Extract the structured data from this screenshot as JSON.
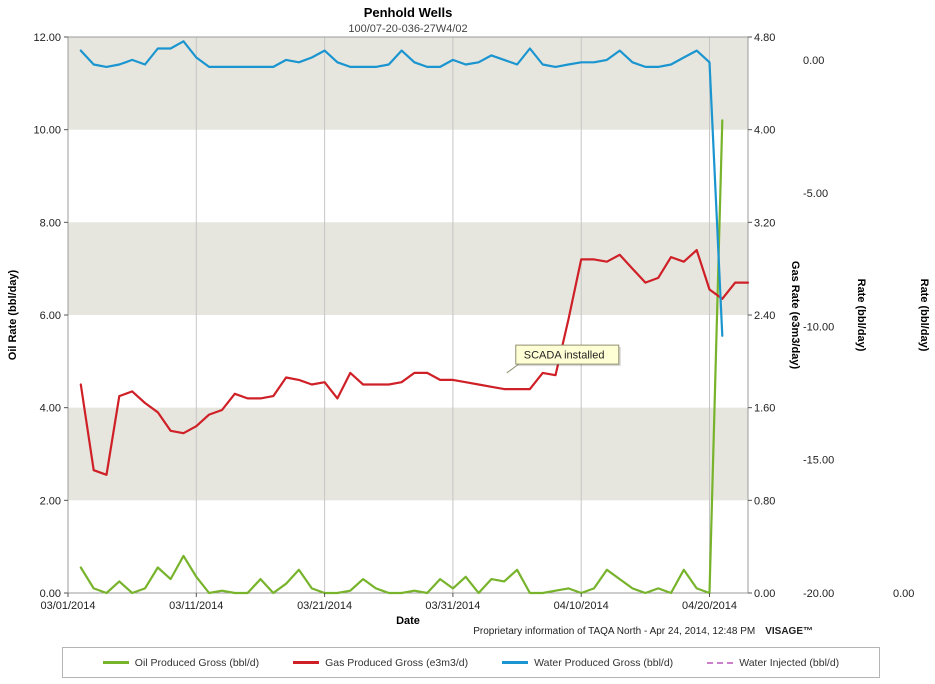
{
  "title": "Penhold Wells",
  "subtitle": "100/07-20-036-27W4/02",
  "footer": {
    "note": "Proprietary information of TAQA North - Apr 24, 2014, 12:48 PM",
    "brand": "VISAGE™"
  },
  "chart_data": {
    "type": "line",
    "title": "Penhold Wells",
    "subtitle": "100/07-20-036-27W4/02",
    "x_axis": {
      "label": "Date",
      "day0": "03/01/2014",
      "day_max": 53,
      "tick_days": [
        0,
        10,
        20,
        30,
        40,
        50
      ],
      "tick_labels": [
        "03/01/2014",
        "03/11/2014",
        "03/21/2014",
        "03/31/2014",
        "04/10/2014",
        "04/20/2014"
      ]
    },
    "axes": [
      {
        "id": "oil",
        "title": "Oil Rate (bbl/day)",
        "side": "left",
        "min": 0,
        "max": 12,
        "ticks": [
          0,
          2,
          4,
          6,
          8,
          10,
          12
        ],
        "tick_labels": [
          "0.00",
          "2.00",
          "4.00",
          "6.00",
          "8.00",
          "10.00",
          "12.00"
        ]
      },
      {
        "id": "gas",
        "title": "Gas Rate (e3m3/day)",
        "side": "right",
        "min": 0,
        "max": 4.8,
        "ticks": [
          0,
          0.8,
          1.6,
          2.4,
          3.2,
          4,
          4.8
        ],
        "tick_labels": [
          "0.00",
          "0.80",
          "1.60",
          "2.40",
          "3.20",
          "4.00",
          "4.80"
        ]
      },
      {
        "id": "rate2",
        "title": "Rate (bbl/day)",
        "side": "right",
        "min": -20,
        "max": 0.86,
        "ticks": [
          0,
          -5,
          -10,
          -15,
          -20
        ],
        "tick_labels": [
          "0.00",
          "-5.00",
          "-10.00",
          "-15.00",
          "-20.00"
        ]
      },
      {
        "id": "rate3",
        "title": "Rate (bbl/day)",
        "side": "right",
        "min": 0,
        "max": 1,
        "ticks": [
          0
        ],
        "tick_labels": [
          "0.00"
        ]
      }
    ],
    "bands": {
      "axis": "oil",
      "color": "#e6e6de",
      "ranges": [
        [
          2,
          4
        ],
        [
          6,
          8
        ],
        [
          10,
          12
        ]
      ]
    },
    "series": [
      {
        "id": "oil",
        "name": "Oil Produced Gross (bbl/d)",
        "axis": "oil",
        "color": "#77b32b",
        "dash": false,
        "x": [
          1,
          2,
          3,
          4,
          5,
          6,
          7,
          8,
          9,
          10,
          11,
          12,
          13,
          14,
          15,
          16,
          17,
          18,
          19,
          20,
          21,
          22,
          23,
          24,
          25,
          26,
          27,
          28,
          29,
          30,
          31,
          32,
          33,
          34,
          35,
          36,
          37,
          38,
          39,
          40,
          41,
          42,
          43,
          44,
          45,
          46,
          47,
          48,
          49,
          50,
          51
        ],
        "values": [
          0.55,
          0.1,
          0,
          0.25,
          0,
          0.1,
          0.55,
          0.3,
          0.8,
          0.35,
          0,
          0.05,
          0,
          0,
          0.3,
          0,
          0.2,
          0.5,
          0.1,
          0,
          0,
          0.05,
          0.3,
          0.1,
          0,
          0,
          0.05,
          0,
          0.3,
          0.1,
          0.35,
          0,
          0.3,
          0.25,
          0.5,
          0,
          0,
          0.05,
          0.1,
          0,
          0.1,
          0.5,
          0.3,
          0.1,
          0,
          0.1,
          0,
          0.5,
          0.1,
          0,
          10.2
        ]
      },
      {
        "id": "gas",
        "name": "Gas Produced Gross (e3m3/d)",
        "axis": "gas",
        "color": "#cf2027",
        "dash": false,
        "x": [
          1,
          2,
          3,
          4,
          5,
          6,
          7,
          8,
          9,
          10,
          11,
          12,
          13,
          14,
          15,
          16,
          17,
          18,
          19,
          20,
          21,
          22,
          23,
          24,
          25,
          26,
          27,
          28,
          29,
          30,
          31,
          32,
          33,
          34,
          35,
          36,
          37,
          38,
          39,
          40,
          41,
          42,
          43,
          44,
          45,
          46,
          47,
          48,
          49,
          50,
          51,
          52,
          53
        ],
        "values": [
          1.8,
          1.06,
          1.02,
          1.7,
          1.74,
          1.64,
          1.56,
          1.4,
          1.38,
          1.44,
          1.54,
          1.58,
          1.72,
          1.68,
          1.68,
          1.7,
          1.86,
          1.84,
          1.8,
          1.82,
          1.68,
          1.9,
          1.8,
          1.8,
          1.8,
          1.82,
          1.9,
          1.9,
          1.84,
          1.84,
          1.82,
          1.8,
          1.78,
          1.76,
          1.76,
          1.76,
          1.9,
          1.88,
          2.36,
          2.88,
          2.88,
          2.86,
          2.92,
          2.8,
          2.68,
          2.72,
          2.9,
          2.86,
          2.96,
          2.62,
          2.54,
          2.68,
          2.68
        ]
      },
      {
        "id": "water",
        "name": "Water Produced Gross (bbl/d)",
        "axis": "rate2",
        "color": "#1b95d0",
        "dash": false,
        "x": [
          1,
          2,
          3,
          4,
          5,
          6,
          7,
          8,
          9,
          10,
          11,
          12,
          13,
          14,
          15,
          16,
          17,
          18,
          19,
          20,
          21,
          22,
          23,
          24,
          25,
          26,
          27,
          28,
          29,
          30,
          31,
          32,
          33,
          34,
          35,
          36,
          37,
          38,
          39,
          40,
          41,
          42,
          43,
          44,
          45,
          46,
          47,
          48,
          49,
          50,
          51
        ],
        "values": [
          0.35,
          -0.17,
          -0.26,
          -0.17,
          0,
          -0.17,
          0.43,
          0.43,
          0.7,
          0.09,
          -0.26,
          -0.26,
          -0.26,
          -0.26,
          -0.26,
          -0.26,
          0,
          -0.09,
          0.09,
          0.35,
          -0.09,
          -0.26,
          -0.26,
          -0.26,
          -0.17,
          0.35,
          -0.09,
          -0.26,
          -0.26,
          0,
          -0.17,
          -0.09,
          0.17,
          0,
          -0.17,
          0.43,
          -0.17,
          -0.26,
          -0.17,
          -0.09,
          -0.09,
          0,
          0.35,
          -0.09,
          -0.26,
          -0.26,
          -0.17,
          0.09,
          0.35,
          -0.09,
          -10.35
        ]
      },
      {
        "id": "water-injected",
        "name": "Water Injected (bbl/d)",
        "axis": "rate3",
        "color": "#cd7ecd",
        "dash": true,
        "x": [],
        "values": []
      }
    ],
    "annotation": {
      "text": "SCADA installed",
      "box_day": 34.9,
      "box_oil": 5.35,
      "anchor_day": 34.2,
      "anchor_oil": 4.75
    }
  }
}
